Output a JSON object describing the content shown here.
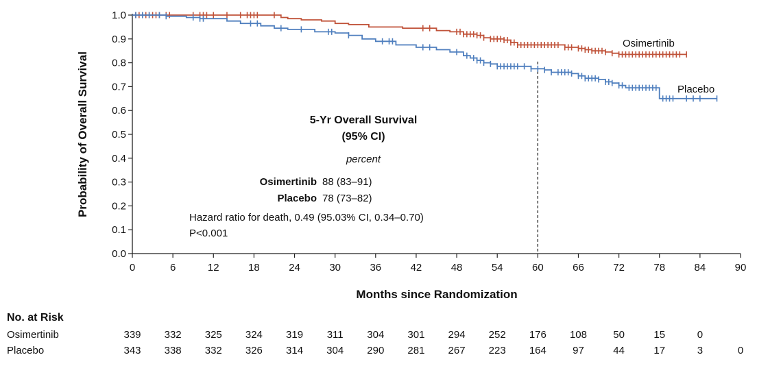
{
  "chart_data": {
    "type": "line",
    "subtype": "kaplan-meier",
    "xlabel": "Months since Randomization",
    "ylabel": "Probability of Overall Survival",
    "xlim": [
      0,
      90
    ],
    "ylim": [
      0,
      1.0
    ],
    "xticks": [
      0,
      6,
      12,
      18,
      24,
      30,
      36,
      42,
      48,
      54,
      60,
      66,
      72,
      78,
      84,
      90
    ],
    "yticks": [
      "0.0",
      "0.1",
      "0.2",
      "0.3",
      "0.4",
      "0.5",
      "0.6",
      "0.7",
      "0.8",
      "0.9",
      "1.0"
    ],
    "reference_line_x": 60,
    "series": [
      {
        "name": "Osimertinib",
        "color": "#c0533a",
        "x": [
          0,
          21,
          22,
          23,
          25,
          28,
          30,
          32,
          35,
          40,
          45,
          47,
          49,
          51,
          52,
          53,
          55,
          56,
          57,
          63,
          64,
          65,
          66,
          67,
          68,
          69,
          70,
          71,
          72,
          82
        ],
        "y": [
          1.0,
          1.0,
          0.99,
          0.985,
          0.98,
          0.975,
          0.965,
          0.96,
          0.95,
          0.945,
          0.935,
          0.93,
          0.92,
          0.915,
          0.905,
          0.9,
          0.895,
          0.885,
          0.875,
          0.875,
          0.865,
          0.865,
          0.86,
          0.855,
          0.85,
          0.85,
          0.845,
          0.84,
          0.835,
          0.835
        ],
        "censor_x": [
          0.5,
          1,
          1.5,
          2,
          2.5,
          3,
          3.5,
          4,
          5,
          5.5,
          9,
          10,
          10.5,
          11,
          12,
          14,
          16,
          17,
          17.5,
          18,
          18.5,
          21,
          43,
          44,
          48,
          48.5,
          49,
          49.5,
          50,
          50.5,
          51,
          51.5,
          52,
          53,
          53.5,
          54,
          54.5,
          55,
          55.5,
          56,
          56.5,
          57,
          57.5,
          58,
          58.5,
          59,
          59.5,
          60,
          60.5,
          61,
          61.5,
          62,
          62.5,
          63,
          64,
          64.5,
          65,
          66,
          66.5,
          67,
          67.5,
          68,
          68.5,
          69,
          69.5,
          70,
          71,
          72,
          72.5,
          73,
          73.5,
          74,
          74.5,
          75,
          75.5,
          76,
          76.5,
          77,
          77.5,
          78,
          78.5,
          79,
          79.5,
          80,
          80.5,
          81,
          82
        ]
      },
      {
        "name": "Placebo",
        "color": "#4f7fbe",
        "x": [
          0,
          5,
          8,
          10,
          14,
          16,
          19,
          21,
          23,
          27,
          30,
          32,
          34,
          36,
          39,
          42,
          45,
          47,
          49,
          50,
          51,
          52,
          53,
          54,
          59,
          61,
          62,
          65,
          66,
          67,
          69,
          70,
          71,
          72,
          73,
          78,
          86.5
        ],
        "y": [
          1.0,
          0.995,
          0.99,
          0.985,
          0.975,
          0.965,
          0.955,
          0.945,
          0.94,
          0.93,
          0.925,
          0.915,
          0.9,
          0.89,
          0.875,
          0.865,
          0.855,
          0.845,
          0.83,
          0.82,
          0.81,
          0.8,
          0.795,
          0.785,
          0.775,
          0.77,
          0.76,
          0.755,
          0.745,
          0.735,
          0.73,
          0.72,
          0.715,
          0.705,
          0.695,
          0.65,
          0.65
        ],
        "censor_x": [
          0.5,
          1.5,
          2.5,
          4,
          5,
          9,
          10,
          10.5,
          17.5,
          18.5,
          22,
          25,
          29,
          29.5,
          32,
          37,
          38,
          38.5,
          43,
          44,
          48,
          49.5,
          50.5,
          51,
          51.5,
          52,
          53,
          54,
          54.5,
          55,
          55.5,
          56,
          56.5,
          57,
          58,
          59,
          60,
          61,
          62,
          63,
          63.5,
          64,
          64.5,
          65,
          66,
          66.5,
          67,
          67.5,
          68,
          68.5,
          69,
          70,
          70.5,
          71,
          72,
          72.5,
          73.5,
          74,
          74.5,
          75,
          75.5,
          76,
          76.5,
          77,
          77.5,
          78.5,
          79,
          79.5,
          80,
          82,
          83,
          84,
          86.5
        ]
      }
    ],
    "series_labels": {
      "osimertinib": "Osimertinib",
      "placebo": "Placebo"
    },
    "inset": {
      "title_line1": "5-Yr Overall Survival",
      "title_line2": "(95% CI)",
      "unit": "percent",
      "osimertinib_name": "Osimertinib",
      "osimertinib_value": "88 (83–91)",
      "placebo_name": "Placebo",
      "placebo_value": "78 (73–82)",
      "hazard_text": "Hazard ratio for death, 0.49 (95.03% CI, 0.34–0.70)",
      "p_text": "P<0.001"
    },
    "at_risk": {
      "title": "No. at Risk",
      "rows": [
        {
          "name": "Osimertinib",
          "values": [
            "339",
            "332",
            "325",
            "324",
            "319",
            "311",
            "304",
            "301",
            "294",
            "252",
            "176",
            "108",
            "50",
            "15",
            "0"
          ]
        },
        {
          "name": "Placebo",
          "values": [
            "343",
            "338",
            "332",
            "326",
            "314",
            "304",
            "290",
            "281",
            "267",
            "223",
            "164",
            "97",
            "44",
            "17",
            "3",
            "0"
          ]
        }
      ]
    }
  }
}
